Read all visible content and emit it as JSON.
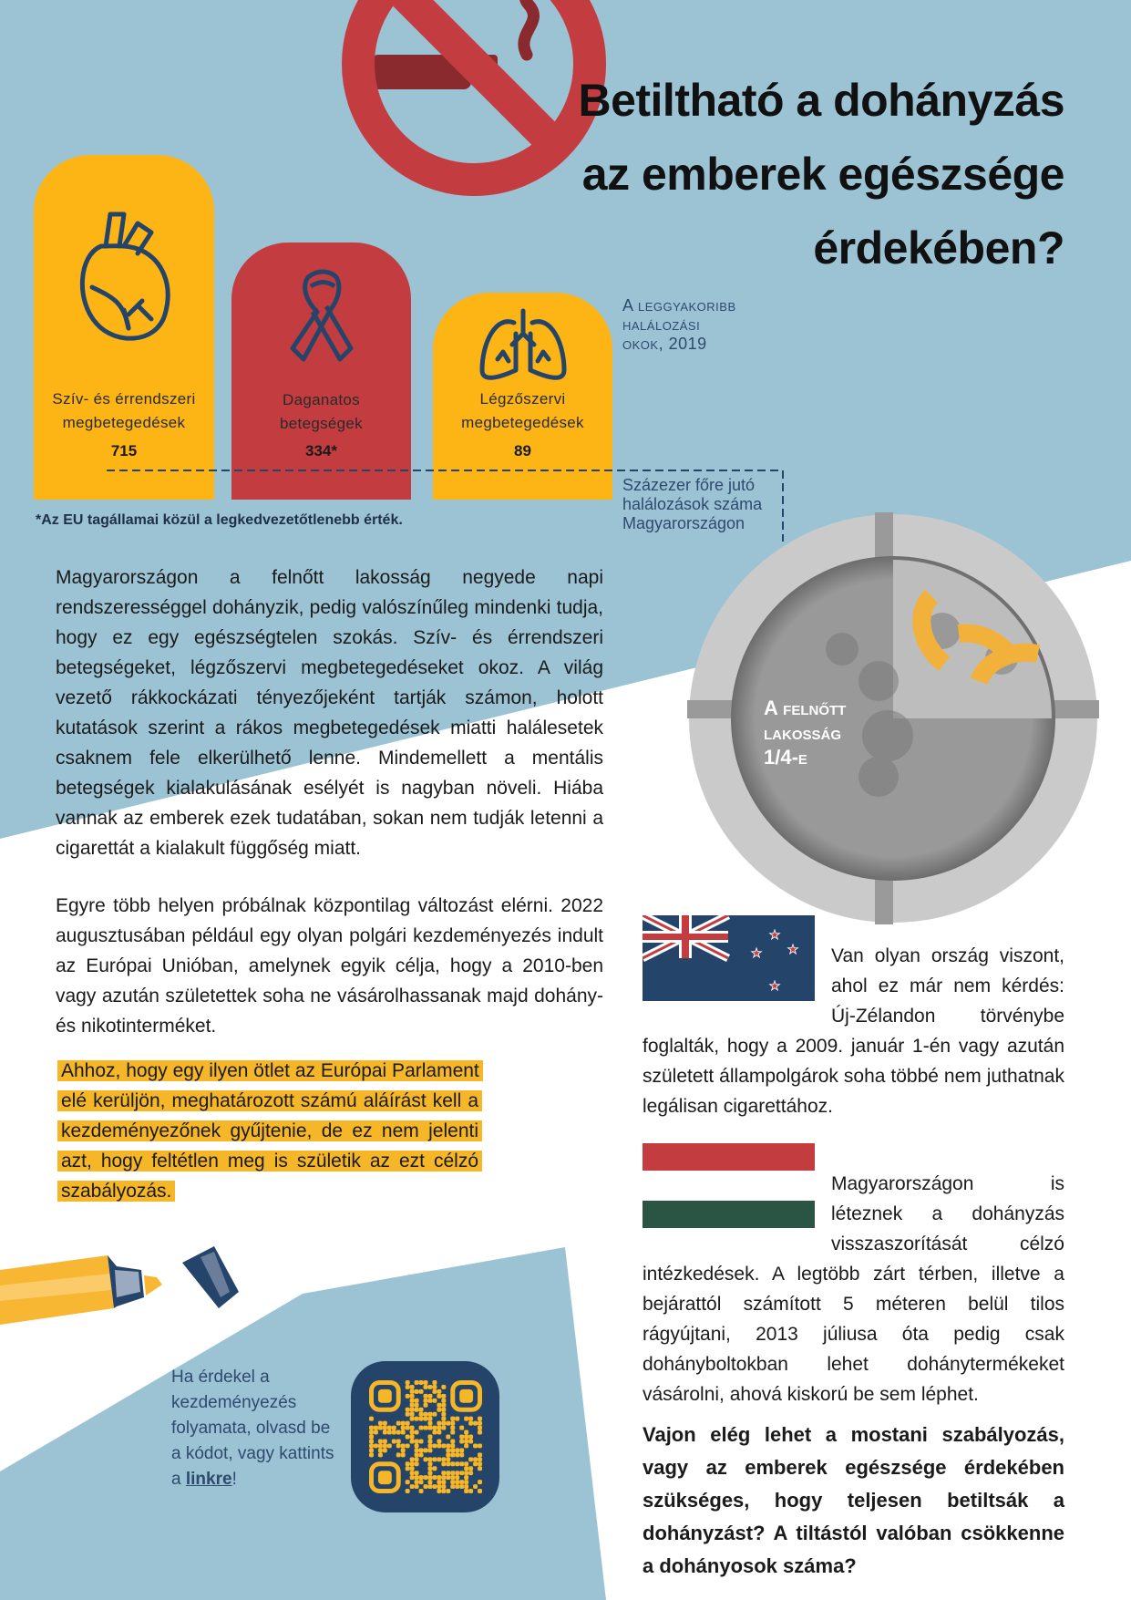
{
  "title": {
    "line1": "Betiltható a dohányzás",
    "line2": "az emberek egészsége",
    "line3": "érdekében?"
  },
  "chart": {
    "caption_lines": [
      "A leggyakoribb",
      "halálozási",
      "okok, 2019"
    ],
    "bars": [
      {
        "label_line1": "Szív- és érrendszeri",
        "label_line2": "megbetegedések",
        "value": "715",
        "icon": "heart-icon",
        "color": "#FDB515"
      },
      {
        "label_line1": "Daganatos",
        "label_line2": "betegségek",
        "value": "334*",
        "icon": "ribbon-icon",
        "color": "#C33D40"
      },
      {
        "label_line1": "Légzőszervi",
        "label_line2": "megbetegedések",
        "value": "89",
        "icon": "lungs-icon",
        "color": "#FDB515"
      }
    ],
    "unit_note_lines": [
      "Százezer főre jutó",
      "halálozások száma",
      "Magyarországon"
    ],
    "footnote": "*Az EU tagállamai közül a legkedvezetőtlenebb érték."
  },
  "ashtray": {
    "label_lines": [
      "A felnőtt",
      "lakosság",
      "1/4-e"
    ],
    "fraction": 0.25
  },
  "paragraphs": {
    "p1": "Magyarországon a felnőtt lakosság negyede napi rendszerességgel dohányzik, pedig valószínűleg mindenki tudja, hogy ez egy egészségtelen szokás. Szív- és érrendszeri betegségeket, légzőszervi megbetegedéseket okoz. A világ vezető rákkockázati tényezőjeként tartják számon, holott kutatások szerint a rákos megbetegedések miatti halálesetek csaknem fele elkerülhető lenne. Mindemellett a mentális betegségek kialakulásának esélyét is nagyban növeli. Hiába vannak az emberek ezek tudatában, sokan nem tudják letenni a cigarettát a kialakult függőség miatt.",
    "p2": "Egyre több helyen próbálnak központilag változást elérni. 2022 augusztusában például egy olyan polgári kezdeményezés indult az Európai Unióban, amelynek egyik célja, hogy a 2010-ben vagy azután születettek soha ne vásárolhassanak majd dohány- és nikotinterméket.",
    "highlight": "Ahhoz, hogy egy ilyen ötlet az Európai Parlament elé kerüljön, meghatározott számú aláírást kell a kezdeményezőnek gyűjtenie, de ez nem jelenti azt, hogy feltétlen meg is születik az ezt célzó szabályozás.",
    "nz": "Van olyan ország viszont, ahol ez már nem kérdés: Új-Zélandon törvénybe foglalták, hogy a 2009. január 1-én vagy azután született állampolgárok soha többé nem juthatnak legálisan cigarettához.",
    "hu": "Magyarországon is léteznek a dohányzás visszaszorítását célzó intézkedések. A legtöbb zárt térben, illetve a bejárattól számított 5 méteren belül tilos rágyújtani, 2013 júliusa óta pedig csak dohányboltokban lehet dohánytermékeket vásárolni, ahová kiskorú be sem léphet.",
    "question": "Vajon elég lehet a mostani szabályozás, vagy az emberek egészsége érdekében szükséges, hogy teljesen betiltsák a dohányzást? A tiltástól valóban csökkenne a dohányosok száma?"
  },
  "qr": {
    "text": "Ha érdekel a kezdeményezés folyamata, olvasd be a kódot, vagy kattints a",
    "link": "linkre",
    "suffix": "!"
  },
  "colors": {
    "background_blue": "#9BC3D4",
    "yellow": "#FDB515",
    "red": "#C33D40",
    "navy": "#25446A",
    "green": "#2A5444"
  }
}
